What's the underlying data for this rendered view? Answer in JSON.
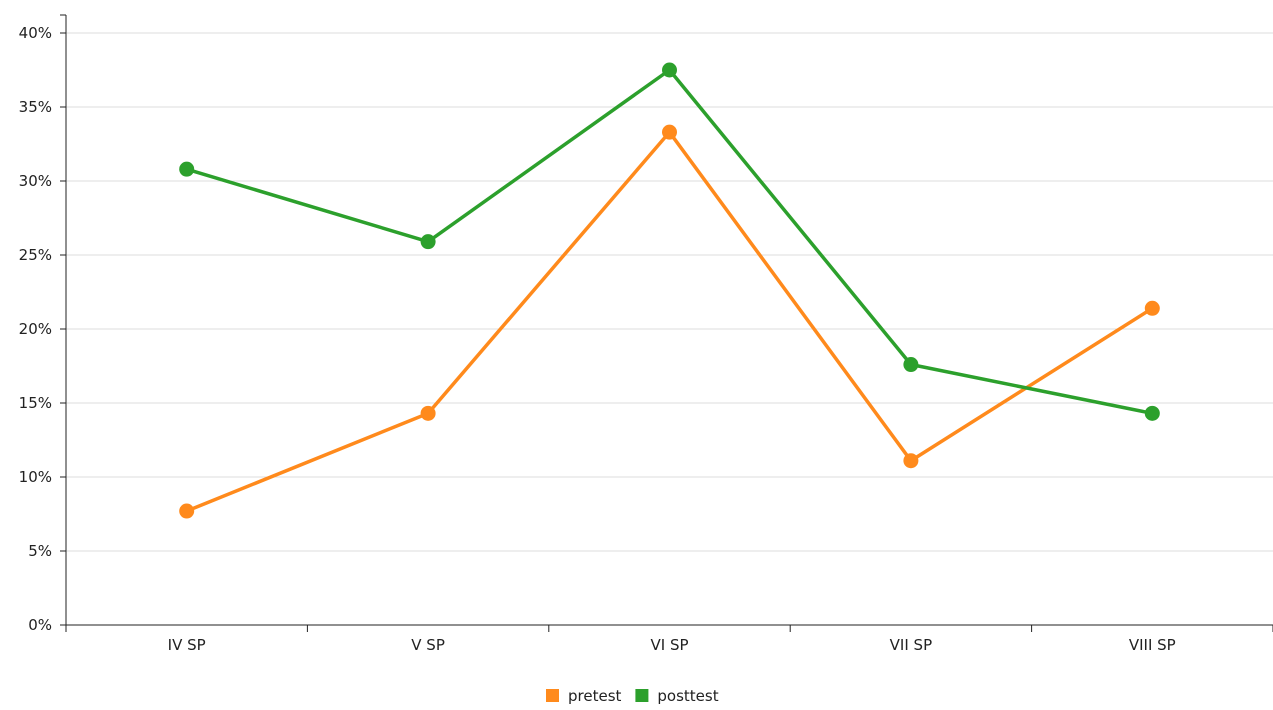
{
  "chart_data": {
    "type": "line",
    "categories": [
      "IV SP",
      "V SP",
      "VI SP",
      "VII SP",
      "VIII SP"
    ],
    "series": [
      {
        "name": "pretest",
        "values": [
          7.7,
          14.3,
          33.3,
          11.1,
          21.4
        ],
        "color": "#ff8a1c"
      },
      {
        "name": "posttest",
        "values": [
          30.8,
          25.9,
          37.5,
          17.6,
          14.3
        ],
        "color": "#2ca02c"
      }
    ],
    "y_ticks": [
      "0%",
      "5%",
      "10%",
      "15%",
      "20%",
      "25%",
      "30%",
      "35%",
      "40%"
    ],
    "ylim": [
      0,
      40
    ],
    "y_step": 5,
    "grid": "horizontal",
    "legend_position": "bottom-center"
  }
}
